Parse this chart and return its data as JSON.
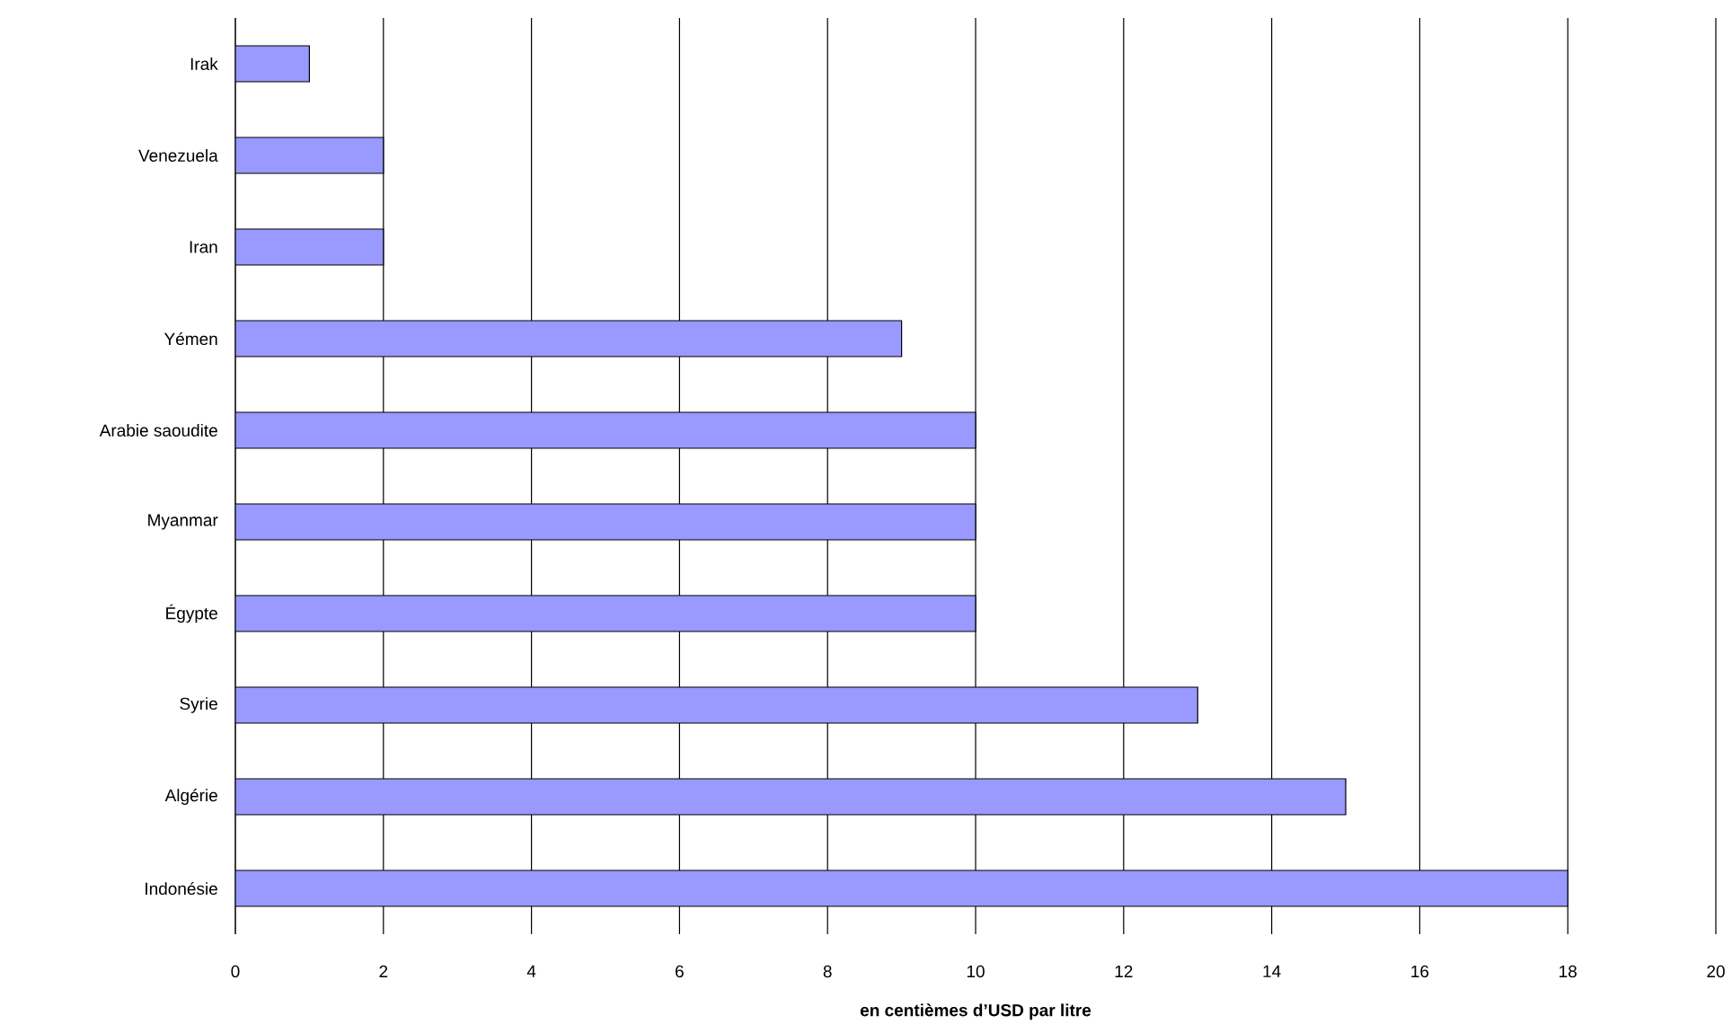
{
  "chart_data": {
    "type": "bar",
    "orientation": "horizontal",
    "categories": [
      "Irak",
      "Venezuela",
      "Iran",
      "Yémen",
      "Arabie saoudite",
      "Myanmar",
      "Égypte",
      "Syrie",
      "Algérie",
      "Indonésie"
    ],
    "values": [
      1,
      2,
      2,
      9,
      10,
      10,
      10,
      13,
      15,
      18
    ],
    "color": "#9999ff",
    "xlim": [
      0,
      20
    ],
    "xticks": [
      0,
      2,
      4,
      6,
      8,
      10,
      12,
      14,
      16,
      18,
      20
    ],
    "xlabel": "en centièmes d’USD par litre",
    "grid": "x"
  }
}
